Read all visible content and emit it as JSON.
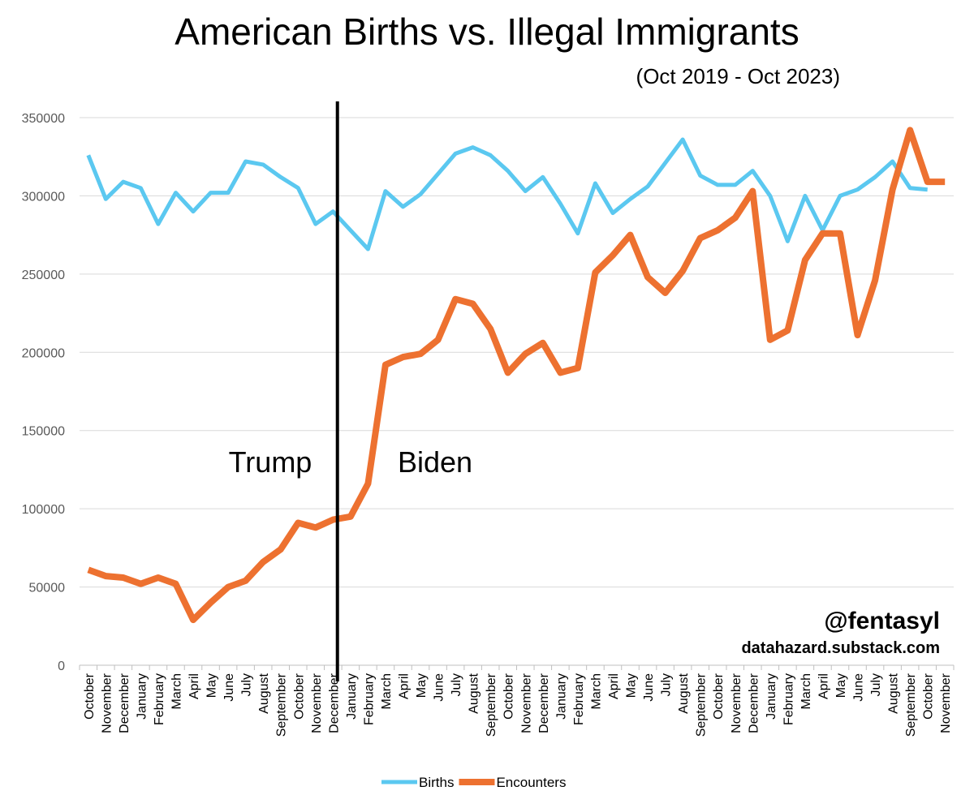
{
  "chart_data": {
    "type": "line",
    "title": "American Births vs. Illegal Immigrants",
    "subtitle": "(Oct 2019 - Oct 2023)",
    "annotations": [
      "Trump",
      "Biden"
    ],
    "credits": [
      "@fentasyl",
      "datahazard.substack.com"
    ],
    "categories": [
      "October",
      "November",
      "December",
      "January",
      "February",
      "March",
      "April",
      "May",
      "June",
      "July",
      "August",
      "September",
      "October",
      "November",
      "December",
      "January",
      "February",
      "March",
      "April",
      "May",
      "June",
      "July",
      "August",
      "September",
      "October",
      "November",
      "December",
      "January",
      "February",
      "March",
      "April",
      "May",
      "June",
      "July",
      "August",
      "September",
      "October",
      "November",
      "December",
      "January",
      "February",
      "March",
      "April",
      "May",
      "June",
      "July",
      "August",
      "September",
      "October",
      "November"
    ],
    "series": [
      {
        "name": "Births",
        "color": "#5bc8f0",
        "values": [
          326000,
          298000,
          309000,
          305000,
          282000,
          302000,
          290000,
          302000,
          302000,
          322000,
          320000,
          312000,
          305000,
          282000,
          290000,
          278000,
          266000,
          303000,
          293000,
          301000,
          314000,
          327000,
          331000,
          326000,
          316000,
          303000,
          312000,
          295000,
          276000,
          308000,
          289000,
          298000,
          306000,
          321000,
          336000,
          313000,
          307000,
          307000,
          316000,
          300000,
          271000,
          300000,
          278000,
          300000,
          304000,
          312000,
          322000,
          305000,
          304000,
          null
        ]
      },
      {
        "name": "Encounters",
        "color": "#ed7130",
        "values": [
          61000,
          57000,
          56000,
          52000,
          56000,
          52000,
          29000,
          40000,
          50000,
          54000,
          66000,
          74000,
          91000,
          88000,
          93000,
          95000,
          116000,
          192000,
          197000,
          199000,
          208000,
          234000,
          231000,
          215000,
          187000,
          199000,
          206000,
          187000,
          190000,
          251000,
          262000,
          275000,
          248000,
          238000,
          252000,
          273000,
          278000,
          286000,
          303000,
          208000,
          214000,
          259000,
          276000,
          276000,
          211000,
          246000,
          304000,
          342000,
          309000,
          309000
        ]
      }
    ],
    "ylim": [
      0,
      350000
    ],
    "yticks": [
      0,
      50000,
      100000,
      150000,
      200000,
      250000,
      300000,
      350000
    ],
    "grid": true,
    "legend": "bottom"
  }
}
